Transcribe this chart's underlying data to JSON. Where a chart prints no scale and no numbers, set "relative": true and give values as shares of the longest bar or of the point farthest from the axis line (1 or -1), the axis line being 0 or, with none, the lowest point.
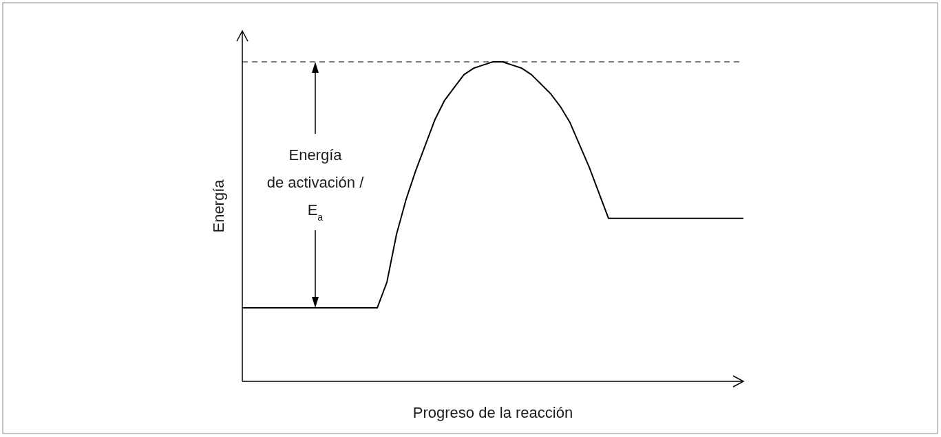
{
  "chart_data": {
    "type": "line",
    "relative": true,
    "xlabel": "Progreso de la reacción",
    "ylabel": "Energía",
    "categories": [
      null,
      null,
      null,
      null,
      null,
      null,
      null,
      null,
      null,
      null,
      null,
      null,
      null,
      null,
      null,
      null,
      null,
      null,
      null,
      null,
      null,
      null,
      null,
      null,
      null,
      null,
      null,
      null,
      null,
      null,
      null,
      null,
      null,
      null,
      null,
      null,
      null,
      null,
      null,
      null,
      null,
      null,
      null,
      null,
      null,
      null,
      null,
      null,
      null,
      null,
      null,
      null,
      null
    ],
    "series": [
      {
        "color": "#000000",
        "values": [
          0.23,
          0.23,
          0.23,
          0.23,
          0.23,
          0.23,
          0.23,
          0.23,
          0.23,
          0.23,
          0.23,
          0.23,
          0.23,
          0.23,
          0.23,
          0.31,
          0.46,
          0.57,
          0.66,
          0.74,
          0.82,
          0.88,
          0.92,
          0.96,
          0.98,
          0.99,
          1.0,
          1.0,
          0.99,
          0.98,
          0.96,
          0.93,
          0.9,
          0.86,
          0.81,
          0.74,
          0.67,
          0.59,
          0.51,
          0.51,
          0.51,
          0.51,
          0.51,
          0.51,
          0.51,
          0.51,
          0.51,
          0.51,
          0.51,
          0.51,
          0.51,
          0.51,
          0.51
        ]
      }
    ],
    "ref_lines": [
      {
        "axis": "y",
        "value": 1,
        "color": "#000000",
        "line_style": "dashed"
      }
    ],
    "annotations": [
      "Energía\nde activación /\nE$_{a}$"
    ]
  }
}
